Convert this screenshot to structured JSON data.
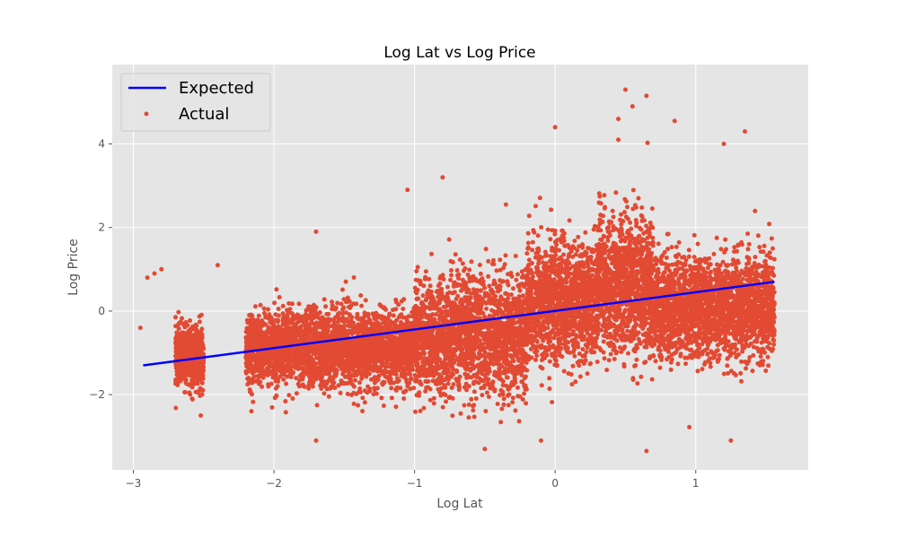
{
  "chart_data": {
    "type": "scatter",
    "title": "Log Lat vs Log Price",
    "xlabel": "Log Lat",
    "ylabel": "Log Price",
    "xlim": [
      -3.15,
      1.8
    ],
    "ylim": [
      -3.8,
      5.9
    ],
    "x_ticks": [
      -3,
      -2,
      -1,
      0,
      1
    ],
    "x_tick_labels": [
      "−3",
      "−2",
      "−1",
      "0",
      "1"
    ],
    "y_ticks": [
      -2,
      0,
      2,
      4
    ],
    "y_tick_labels": [
      "−2",
      "0",
      "2",
      "4"
    ],
    "grid": true,
    "legend_position": "top-left",
    "background_color": "#e5e5e5",
    "series": [
      {
        "name": "Expected",
        "kind": "line",
        "color": "#0000ff",
        "x": [
          -2.93,
          1.56
        ],
        "y": [
          -1.3,
          0.7
        ]
      },
      {
        "name": "Actual",
        "kind": "scatter",
        "color": "#e24a33",
        "clusters": [
          {
            "x_range": [
              -2.7,
              -2.5
            ],
            "y_center": -1.1,
            "y_spread": 0.35
          },
          {
            "x_range": [
              -2.2,
              -1.0
            ],
            "y_center": -0.9,
            "y_spread": 0.45
          },
          {
            "x_range": [
              -1.0,
              -0.2
            ],
            "y_center": -0.6,
            "y_spread": 0.7
          },
          {
            "x_range": [
              -0.2,
              0.3
            ],
            "y_center": 0.2,
            "y_spread": 0.7
          },
          {
            "x_range": [
              0.3,
              0.7
            ],
            "y_center": 0.6,
            "y_spread": 0.8
          },
          {
            "x_range": [
              0.7,
              1.56
            ],
            "y_center": 0.1,
            "y_spread": 0.6
          }
        ],
        "outliers": [
          {
            "x": -2.9,
            "y": 0.8
          },
          {
            "x": -2.85,
            "y": 0.9
          },
          {
            "x": -2.95,
            "y": -0.4
          },
          {
            "x": -2.8,
            "y": 1.0
          },
          {
            "x": -2.4,
            "y": 1.1
          },
          {
            "x": -2.52,
            "y": -2.5
          },
          {
            "x": -1.7,
            "y": -3.1
          },
          {
            "x": -1.7,
            "y": 1.9
          },
          {
            "x": -1.05,
            "y": 2.9
          },
          {
            "x": -0.8,
            "y": 3.2
          },
          {
            "x": -0.5,
            "y": -3.3
          },
          {
            "x": -0.1,
            "y": -3.1
          },
          {
            "x": 0.0,
            "y": 4.4
          },
          {
            "x": 0.45,
            "y": 4.6
          },
          {
            "x": 0.5,
            "y": 5.3
          },
          {
            "x": 0.65,
            "y": 5.15
          },
          {
            "x": 0.85,
            "y": 4.55
          },
          {
            "x": 1.35,
            "y": 4.3
          },
          {
            "x": 1.2,
            "y": 4.0
          },
          {
            "x": 0.65,
            "y": -3.35
          },
          {
            "x": 1.25,
            "y": -3.1
          },
          {
            "x": 0.55,
            "y": 4.9
          },
          {
            "x": 0.45,
            "y": 4.1
          },
          {
            "x": -0.35,
            "y": 2.55
          }
        ]
      }
    ]
  }
}
